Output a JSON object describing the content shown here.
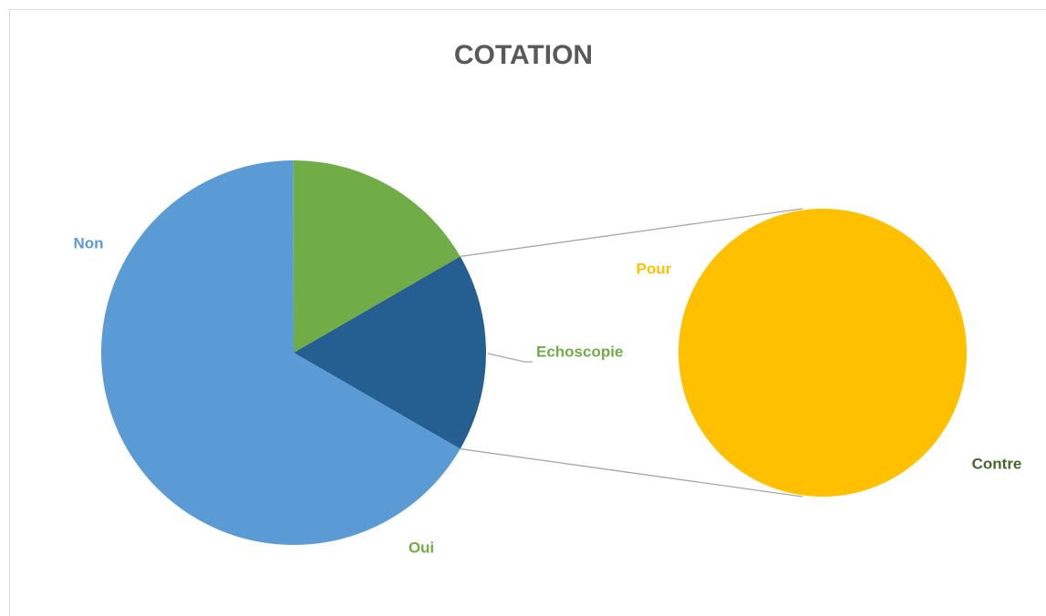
{
  "chart_data": {
    "type": "pie-of-pie",
    "title": "COTATION",
    "categories": [
      "Non",
      "Oui"
    ],
    "values": [
      66.7,
      16.7
    ],
    "colors": [
      "#5b9bd5",
      "#70ad47"
    ],
    "other_label": "Echoscopie",
    "other_color": "#255e91",
    "other_label_color": "#70ad47",
    "secondary": {
      "categories": [
        "Pour",
        "Contre"
      ],
      "values": [
        16.7,
        0
      ],
      "colors": [
        "#ffc000",
        "#43682b"
      ]
    }
  }
}
